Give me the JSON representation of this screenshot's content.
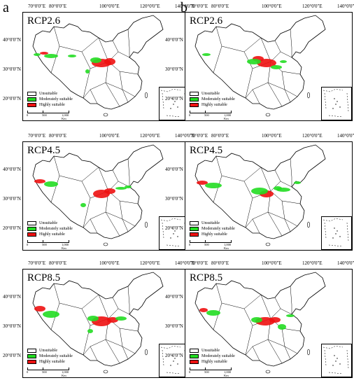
{
  "columns": [
    "a",
    "b"
  ],
  "longitude_labels": [
    "70°0'0\"E",
    "80°0'0\"E",
    "100°0'0\"E",
    "120°0'0\"E",
    "140°0'0\"E"
  ],
  "latitude_labels": [
    "40°0'0\"N",
    "30°0'0\"N",
    "20°0'0\"N"
  ],
  "legend": {
    "unsuitable": "Unsuitable",
    "moderate": "Moderately suitable",
    "high": "Highly suitable"
  },
  "scale_labels": [
    "0",
    "500",
    "1,000 Km"
  ],
  "colors": {
    "unsuitable": "#ffffff",
    "moderate": "#22dd22",
    "high": "#ee1111",
    "border": "#000000"
  },
  "panels": [
    {
      "column": "a",
      "scenario": "RCP2.6"
    },
    {
      "column": "b",
      "scenario": "RCP2.6"
    },
    {
      "column": "a",
      "scenario": "RCP4.5"
    },
    {
      "column": "b",
      "scenario": "RCP4.5"
    },
    {
      "column": "a",
      "scenario": "RCP8.5"
    },
    {
      "column": "b",
      "scenario": "RCP8.5"
    }
  ]
}
